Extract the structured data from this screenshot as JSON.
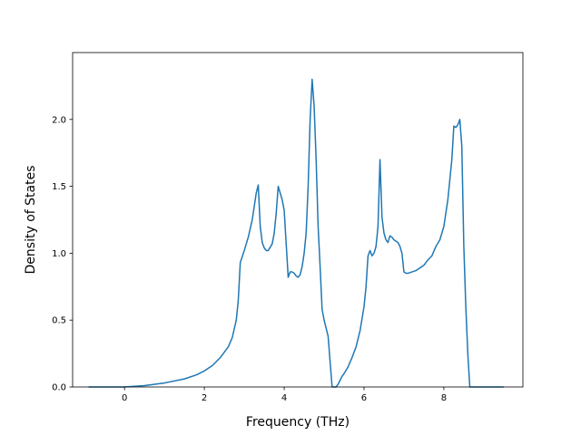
{
  "chart_data": {
    "type": "line",
    "title": "",
    "xlabel": "Frequency (THz)",
    "ylabel": "Density of States",
    "xlim": [
      -1.3,
      9.98
    ],
    "ylim": [
      0,
      2.5
    ],
    "x_ticks": [
      0,
      2,
      4,
      6,
      8
    ],
    "x_tick_labels": [
      "0",
      "2",
      "4",
      "6",
      "8"
    ],
    "y_ticks": [
      0.0,
      0.5,
      1.0,
      1.5,
      2.0
    ],
    "y_tick_labels": [
      "0.0",
      "0.5",
      "1.0",
      "1.5",
      "2.0"
    ],
    "grid": false,
    "legend": "none",
    "series": [
      {
        "color": "#1f77b4",
        "x": [
          -0.9,
          0.0,
          0.5,
          1.0,
          1.5,
          1.8,
          2.0,
          2.2,
          2.4,
          2.6,
          2.7,
          2.8,
          2.85,
          2.9,
          3.0,
          3.1,
          3.2,
          3.3,
          3.35,
          3.4,
          3.45,
          3.5,
          3.55,
          3.6,
          3.7,
          3.75,
          3.8,
          3.85,
          3.9,
          3.95,
          4.0,
          4.1,
          4.15,
          4.2,
          4.25,
          4.3,
          4.35,
          4.4,
          4.45,
          4.5,
          4.55,
          4.6,
          4.65,
          4.7,
          4.75,
          4.8,
          4.85,
          4.9,
          4.95,
          5.0,
          5.1,
          5.2,
          5.25,
          5.3,
          5.35,
          5.4,
          5.45,
          5.5,
          5.6,
          5.7,
          5.8,
          5.9,
          6.0,
          6.05,
          6.1,
          6.15,
          6.2,
          6.25,
          6.3,
          6.35,
          6.4,
          6.45,
          6.5,
          6.55,
          6.6,
          6.65,
          6.7,
          6.75,
          6.8,
          6.85,
          6.9,
          6.95,
          7.0,
          7.05,
          7.1,
          7.2,
          7.3,
          7.4,
          7.5,
          7.6,
          7.7,
          7.8,
          7.9,
          8.0,
          8.05,
          8.1,
          8.15,
          8.2,
          8.25,
          8.3,
          8.35,
          8.4,
          8.45,
          8.5,
          8.55,
          8.6,
          8.65,
          8.7,
          9.0,
          9.5
        ],
        "y": [
          0.0,
          0.0,
          0.01,
          0.03,
          0.06,
          0.09,
          0.12,
          0.16,
          0.22,
          0.3,
          0.37,
          0.5,
          0.65,
          0.93,
          1.02,
          1.12,
          1.25,
          1.45,
          1.51,
          1.2,
          1.08,
          1.04,
          1.02,
          1.02,
          1.07,
          1.15,
          1.3,
          1.5,
          1.45,
          1.4,
          1.32,
          0.82,
          0.86,
          0.86,
          0.85,
          0.83,
          0.82,
          0.84,
          0.9,
          1.0,
          1.15,
          1.5,
          2.0,
          2.3,
          2.1,
          1.7,
          1.2,
          0.9,
          0.58,
          0.5,
          0.38,
          0.0,
          0.0,
          0.0,
          0.02,
          0.05,
          0.08,
          0.1,
          0.15,
          0.22,
          0.3,
          0.42,
          0.6,
          0.75,
          0.98,
          1.02,
          0.98,
          1.0,
          1.05,
          1.2,
          1.7,
          1.27,
          1.15,
          1.1,
          1.08,
          1.13,
          1.12,
          1.1,
          1.09,
          1.08,
          1.05,
          1.0,
          0.86,
          0.85,
          0.85,
          0.86,
          0.87,
          0.89,
          0.91,
          0.95,
          0.98,
          1.05,
          1.1,
          1.2,
          1.3,
          1.4,
          1.55,
          1.7,
          1.95,
          1.94,
          1.96,
          2.0,
          1.8,
          1.05,
          0.6,
          0.25,
          0.0,
          0.0,
          0.0,
          0.0
        ]
      }
    ]
  }
}
